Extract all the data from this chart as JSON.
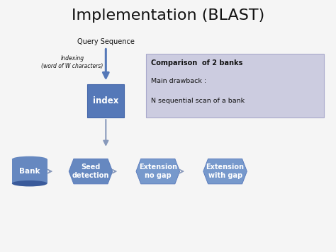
{
  "title": "Implementation (BLAST)",
  "title_fontsize": 16,
  "bg_color": "#f0f0f0",
  "blue_dark": "#3a5a9a",
  "blue_mid": "#5578b8",
  "blue_mid2": "#6688c0",
  "blue_light": "#7799cc",
  "text_white": "#ffffff",
  "text_dark": "#111111",
  "arrow_color": "#8899bb",
  "info_box_bg": "#cccce0",
  "info_box_border": "#aaaacc",
  "query_seq_label": "Query Sequence",
  "indexing_label": "Indexing\n(word of W characters)",
  "index_label": "index",
  "bank_label": "Bank",
  "seed_label": "Seed\ndetection",
  "ext_nogap_label": "Extension\nno gap",
  "ext_gap_label": "Extension\nwith gap",
  "info_title": "Comparison  of 2 banks",
  "info_line1": "Main drawback :",
  "info_line2": "N sequential scan of a bank",
  "xlim": [
    0,
    10
  ],
  "ylim": [
    0,
    7.5
  ]
}
